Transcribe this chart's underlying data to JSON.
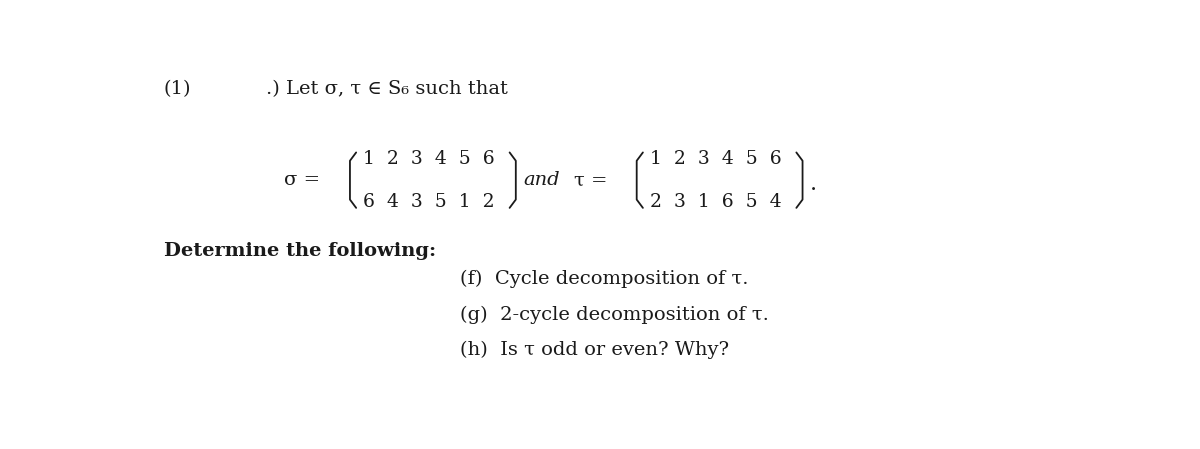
{
  "background_color": "#ffffff",
  "title_label": "(1)",
  "intro_text": ".) Let σ, τ ∈ S₆ such that",
  "sigma_label": "σ =",
  "tau_label": "τ =",
  "and_label": "and",
  "sigma_top": "1  2  3  4  5  6",
  "sigma_bot": "6  4  3  5  1  2",
  "tau_top": "1  2  3  4  5  6",
  "tau_bot": "2  3  1  6  5  4",
  "determine_text": "Determine the following:",
  "item_f": "(f)  Cycle decomposition of τ.",
  "item_g": "(g)  2-cycle decomposition of τ.",
  "item_h": "(h)  Is τ odd or even? Why?",
  "font_size_main": 14,
  "font_size_matrix": 13.5,
  "text_color": "#1a1a1a"
}
